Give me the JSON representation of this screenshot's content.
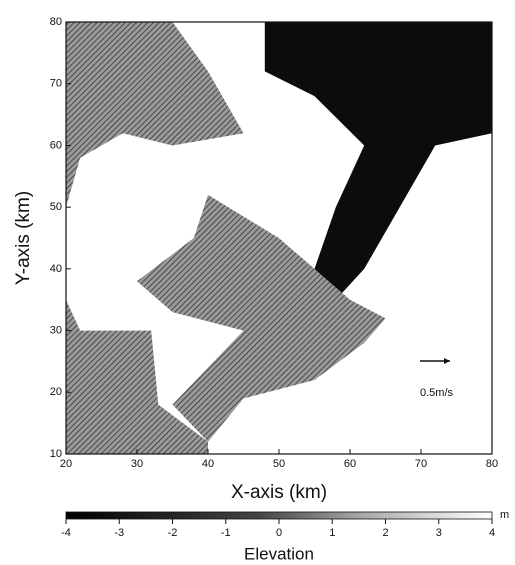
{
  "chart_data": {
    "type": "contour",
    "x_label": "X-axis (km)",
    "y_label": "Y-axis (km)",
    "xlim": [
      20,
      80
    ],
    "ylim": [
      10,
      80
    ],
    "xticks": [
      20,
      30,
      40,
      50,
      60,
      70,
      80
    ],
    "yticks": [
      10,
      20,
      30,
      40,
      50,
      60,
      70,
      80
    ],
    "annotation": "0.5m/s",
    "colorbar": {
      "label": "Elevation",
      "unit": "m",
      "lim": [
        -4,
        4
      ],
      "ticks": [
        -4,
        -3,
        -2,
        -1,
        0,
        1,
        2,
        3,
        4
      ]
    }
  }
}
